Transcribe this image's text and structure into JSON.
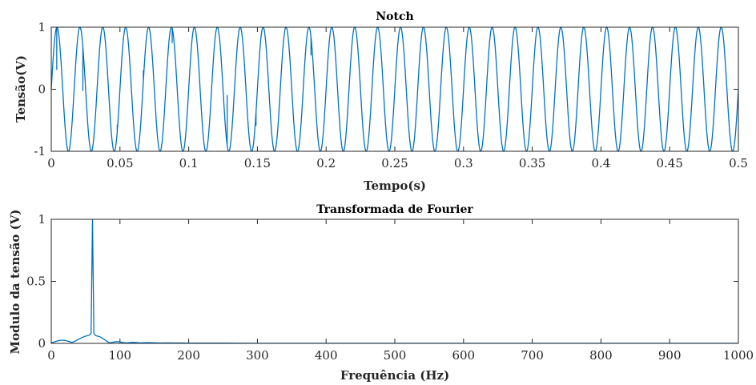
{
  "chart_data": [
    {
      "type": "line",
      "title": "Notch",
      "xlabel": "Tempo(s)",
      "ylabel": "Tensão(V)",
      "xlim": [
        0,
        0.5
      ],
      "ylim": [
        -1,
        1
      ],
      "xticks": [
        0,
        0.05,
        0.1,
        0.15,
        0.2,
        0.25,
        0.3,
        0.35,
        0.4,
        0.45,
        0.5
      ],
      "xtick_labels": [
        "0",
        "0.05",
        "0.1",
        "0.15",
        "0.2",
        "0.25",
        "0.3",
        "0.35",
        "0.4",
        "0.45",
        "0.5"
      ],
      "yticks": [
        -1,
        0,
        1
      ],
      "ytick_labels": [
        "-1",
        "0",
        "1"
      ],
      "grid": false,
      "series": [
        {
          "frequency_hz": 60,
          "amplitude": 1,
          "color": "#0072BD",
          "transients": [
            {
              "t": 0.004,
              "v": 0.32
            },
            {
              "t": 0.023,
              "v": -0.02
            },
            {
              "t": 0.048,
              "v": -0.58
            },
            {
              "t": 0.067,
              "v": 0.3
            },
            {
              "t": 0.088,
              "v": 0.75
            },
            {
              "t": 0.128,
              "v": -0.1
            },
            {
              "t": 0.149,
              "v": -0.58
            },
            {
              "t": 0.189,
              "v": 0.55
            }
          ]
        }
      ]
    },
    {
      "type": "line",
      "title": "Transformada de Fourier",
      "xlabel": "Frequência (Hz)",
      "ylabel": "Modulo da tensão (V)",
      "xlim": [
        0,
        1000
      ],
      "ylim": [
        0,
        1
      ],
      "xticks": [
        0,
        100,
        200,
        300,
        400,
        500,
        600,
        700,
        800,
        900,
        1000
      ],
      "xtick_labels": [
        "0",
        "100",
        "200",
        "300",
        "400",
        "500",
        "600",
        "700",
        "800",
        "900",
        "1000"
      ],
      "yticks": [
        0,
        0.5,
        1
      ],
      "ytick_labels": [
        "0",
        "0.5",
        "1"
      ],
      "grid": false,
      "series": [
        {
          "color": "#0072BD",
          "x": [
            0,
            5,
            10,
            15,
            20,
            25,
            30,
            35,
            40,
            45,
            50,
            55,
            58,
            59,
            60,
            61,
            62,
            65,
            70,
            75,
            80,
            85,
            90,
            95,
            100,
            105,
            110,
            115,
            120,
            130,
            140,
            150,
            160,
            170,
            180,
            190,
            200,
            250,
            300,
            400,
            500,
            600,
            700,
            800,
            900,
            1000
          ],
          "y": [
            0.005,
            0.012,
            0.022,
            0.026,
            0.024,
            0.016,
            0.008,
            0.018,
            0.034,
            0.048,
            0.058,
            0.065,
            0.08,
            0.55,
            1.0,
            0.55,
            0.08,
            0.062,
            0.055,
            0.04,
            0.02,
            0.004,
            0.01,
            0.014,
            0.012,
            0.006,
            0.004,
            0.007,
            0.008,
            0.004,
            0.006,
            0.005,
            0.003,
            0.004,
            0.003,
            0.003,
            0.002,
            0.002,
            0.001,
            0.001,
            0.001,
            0.001,
            0.001,
            0.001,
            0.001,
            0.001
          ]
        }
      ]
    }
  ]
}
